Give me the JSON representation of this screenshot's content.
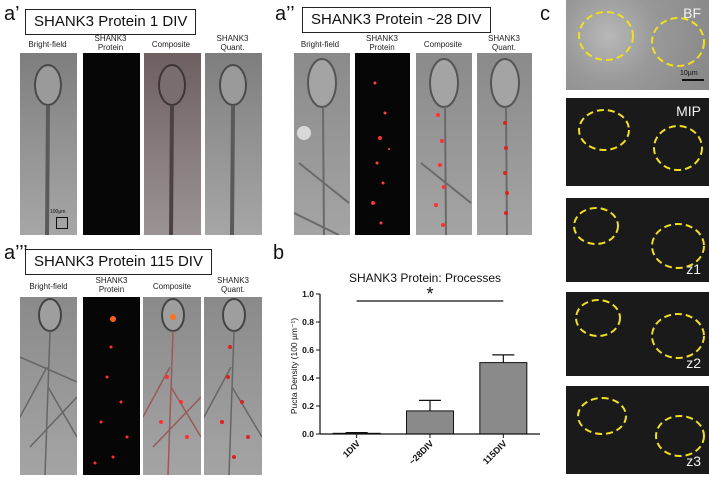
{
  "panel_a1": {
    "label": "a’",
    "title": "SHANK3 Protein 1 DIV",
    "columns": [
      "Bright-field",
      "SHANK3\nProtein",
      "Composite",
      "SHANK3\nQuant."
    ],
    "scale_label": "100µm"
  },
  "panel_a2": {
    "label": "a’’",
    "title": "SHANK3 Protein ~28 DIV",
    "columns": [
      "Bright-field",
      "SHANK3\nProtein",
      "Composite",
      "SHANK3\nQuant."
    ]
  },
  "panel_a3": {
    "label": "a’’’",
    "title": "SHANK3 Protein 115 DIV",
    "columns": [
      "Bright-field",
      "SHANK3\nProtein",
      "Composite",
      "SHANK3\nQuant."
    ]
  },
  "panel_b": {
    "label": "b"
  },
  "panel_c": {
    "label": "c",
    "tags": [
      "BF",
      "MIP",
      "z1",
      "z2",
      "z3"
    ],
    "scale_label": "10µm"
  },
  "chart_data": {
    "type": "bar",
    "title": "SHANK3 Protein: Processes",
    "ylabel": "Pucta Density (100 µm⁻¹)",
    "categories": [
      "1DIV",
      "~28DIV",
      "115DIV"
    ],
    "values": [
      0.005,
      0.165,
      0.51
    ],
    "errors": [
      0.005,
      0.075,
      0.055
    ],
    "ylim": [
      0,
      1.0
    ],
    "yticks": [
      "0.0",
      "0.2",
      "0.4",
      "0.6",
      "0.8",
      "1.0"
    ],
    "significance": {
      "from": "1DIV",
      "to": "115DIV",
      "y": 0.95,
      "label": "*"
    },
    "bar_color": "#8a8a8a"
  }
}
